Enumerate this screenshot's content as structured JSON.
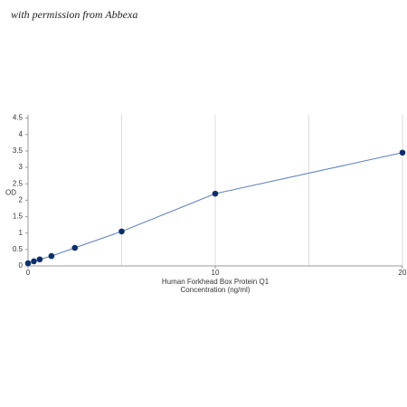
{
  "watermark": "with permission from Abbexa",
  "chart_data": {
    "type": "scatter",
    "ylabel": "OD",
    "xlabel": [
      "Human Forkhead Box Protein Q1",
      "Concentration (ng/ml)"
    ],
    "x": [
      0,
      0.312,
      0.625,
      1.25,
      2.5,
      5,
      10,
      20
    ],
    "values": [
      0.08,
      0.14,
      0.2,
      0.3,
      0.55,
      1.05,
      2.2,
      3.45
    ],
    "color": "#0d2f6b",
    "line_color": "#5b7fbf",
    "xlim": [
      0,
      20
    ],
    "xticks": [
      0,
      10,
      20
    ],
    "xgrid": [
      0,
      5,
      10,
      15,
      20
    ],
    "ylim": [
      0,
      4.6
    ],
    "yticks": [
      0,
      0.5,
      1,
      1.5,
      2,
      2.5,
      3,
      3.5,
      4,
      4.5
    ]
  }
}
